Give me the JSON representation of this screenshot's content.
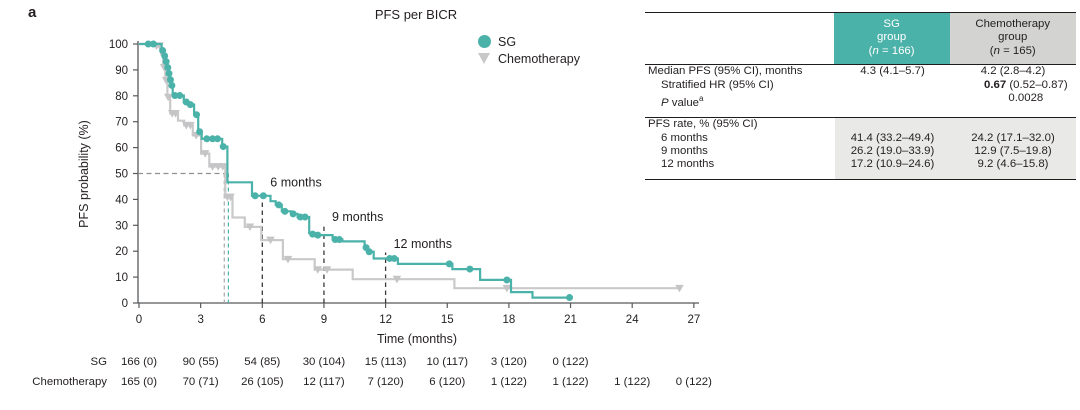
{
  "panel_label": "a",
  "chart_data": {
    "type": "line",
    "subtype": "kaplan-meier-step",
    "title": "PFS per BICR",
    "xlabel": "Time (months)",
    "ylabel": "PFS probability (%)",
    "xlim": [
      0,
      27
    ],
    "ylim": [
      0,
      100
    ],
    "xticks": [
      0,
      3,
      6,
      9,
      12,
      15,
      18,
      21,
      24,
      27
    ],
    "yticks": [
      0,
      10,
      20,
      30,
      40,
      50,
      60,
      70,
      80,
      90,
      100
    ],
    "grid": false,
    "legend_position": "top-right-inside",
    "legend": {
      "sg": "SG",
      "chemo": "Chemotherapy"
    },
    "colors": {
      "sg": "#4bb2a9",
      "chemo": "#c9c9c9",
      "chemo_marker": "#c5c5c7",
      "axis": "#58595b",
      "text": "#231f20",
      "month_dash": "#3a3a3a",
      "median_h_dash": "#909090",
      "median_chemo_dash": "#a8a8a8",
      "table_sg_bg": "#4bb2a9",
      "table_sg_text": "#ffffff",
      "table_chemo_bg": "#d3d3d2",
      "shade": "#e9e9e7"
    },
    "series": [
      {
        "name": "Chemotherapy",
        "marker": "triangle-down",
        "end_t": 26.3,
        "steps": [
          [
            0,
            100
          ],
          [
            0.8,
            99.3
          ],
          [
            1.08,
            96
          ],
          [
            1.18,
            91
          ],
          [
            1.28,
            86
          ],
          [
            1.38,
            79.5
          ],
          [
            1.52,
            73.2
          ],
          [
            1.9,
            70.4
          ],
          [
            2.2,
            68.6
          ],
          [
            2.62,
            64.7
          ],
          [
            3.02,
            57.7
          ],
          [
            3.42,
            52.7
          ],
          [
            4.2,
            40.9
          ],
          [
            4.55,
            33.0
          ],
          [
            5.15,
            29.4
          ],
          [
            5.95,
            24.3
          ],
          [
            7.0,
            16.9
          ],
          [
            8.55,
            12.9
          ],
          [
            10.4,
            9.2
          ],
          [
            15.35,
            5.7
          ]
        ],
        "censor_marks": [
          [
            0.85,
            99.3
          ],
          [
            1.0,
            99.3
          ],
          [
            1.22,
            91
          ],
          [
            1.32,
            86
          ],
          [
            1.42,
            79.5
          ],
          [
            1.62,
            73.2
          ],
          [
            1.78,
            73.2
          ],
          [
            2.3,
            68.6
          ],
          [
            2.5,
            68.6
          ],
          [
            2.78,
            64.7
          ],
          [
            3.22,
            57.7
          ],
          [
            3.58,
            52.7
          ],
          [
            3.85,
            52.7
          ],
          [
            4.08,
            52.7
          ],
          [
            4.3,
            40.9
          ],
          [
            4.45,
            40.9
          ],
          [
            5.4,
            29.4
          ],
          [
            6.4,
            24.3
          ],
          [
            7.25,
            16.9
          ],
          [
            8.7,
            12.9
          ],
          [
            9.15,
            12.9
          ],
          [
            12.55,
            9.2
          ],
          [
            17.9,
            5.7
          ],
          [
            26.3,
            5.7
          ]
        ]
      },
      {
        "name": "SG",
        "marker": "circle",
        "end_t": 21.0,
        "steps": [
          [
            0,
            100
          ],
          [
            1.1,
            97.5
          ],
          [
            1.22,
            95.4
          ],
          [
            1.3,
            93.2
          ],
          [
            1.36,
            90.9
          ],
          [
            1.44,
            88.6
          ],
          [
            1.5,
            86.2
          ],
          [
            1.56,
            84.0
          ],
          [
            1.64,
            80.1
          ],
          [
            2.18,
            77.6
          ],
          [
            2.42,
            76.6
          ],
          [
            2.68,
            72.7
          ],
          [
            2.88,
            66.1
          ],
          [
            3.05,
            63.4
          ],
          [
            4.05,
            60.4
          ],
          [
            4.3,
            46.6
          ],
          [
            5.5,
            41.4
          ],
          [
            6.4,
            39.3
          ],
          [
            6.65,
            37.9
          ],
          [
            6.95,
            35.4
          ],
          [
            7.4,
            34.4
          ],
          [
            7.72,
            33.2
          ],
          [
            8.28,
            27.0
          ],
          [
            8.55,
            26.2
          ],
          [
            9.42,
            24.5
          ],
          [
            9.9,
            23.8
          ],
          [
            10.98,
            21.4
          ],
          [
            11.15,
            19.8
          ],
          [
            11.42,
            17.2
          ],
          [
            12.6,
            15.1
          ],
          [
            15.25,
            13.1
          ],
          [
            16.6,
            8.9
          ],
          [
            18.1,
            4.2
          ],
          [
            19.15,
            2.1
          ]
        ],
        "censor_marks": [
          [
            0.45,
            100
          ],
          [
            0.7,
            100
          ],
          [
            1.15,
            97.5
          ],
          [
            1.25,
            95.4
          ],
          [
            1.32,
            93.2
          ],
          [
            1.4,
            90.9
          ],
          [
            1.46,
            88.6
          ],
          [
            1.53,
            86.2
          ],
          [
            1.6,
            84.0
          ],
          [
            1.75,
            80.1
          ],
          [
            1.98,
            80.1
          ],
          [
            2.3,
            77.6
          ],
          [
            2.5,
            76.6
          ],
          [
            2.8,
            72.7
          ],
          [
            2.95,
            66.1
          ],
          [
            3.3,
            63.4
          ],
          [
            3.58,
            63.4
          ],
          [
            3.82,
            63.4
          ],
          [
            4.1,
            60.4
          ],
          [
            5.65,
            41.4
          ],
          [
            6.05,
            41.4
          ],
          [
            6.8,
            37.9
          ],
          [
            7.1,
            35.4
          ],
          [
            7.5,
            34.4
          ],
          [
            7.85,
            33.2
          ],
          [
            8.08,
            33.2
          ],
          [
            8.45,
            26.6
          ],
          [
            8.7,
            26.2
          ],
          [
            9.55,
            24.5
          ],
          [
            9.75,
            24.5
          ],
          [
            11.05,
            21.4
          ],
          [
            11.2,
            19.8
          ],
          [
            12.2,
            17.2
          ],
          [
            12.42,
            17.2
          ],
          [
            15.1,
            15.1
          ],
          [
            16.1,
            13.1
          ],
          [
            17.9,
            8.9
          ],
          [
            20.95,
            2.1
          ]
        ]
      }
    ],
    "annotations": {
      "median_pfs": {
        "y_pct": 50,
        "sg_x": 4.35,
        "chemo_x": 4.15
      },
      "month_lines": [
        {
          "x": 6,
          "label": "6 months",
          "line_top_pct": 43.0,
          "label_y_pct": 46.5
        },
        {
          "x": 9,
          "label": "9 months",
          "line_top_pct": 29.5,
          "label_y_pct": 33.2
        },
        {
          "x": 12,
          "label": "12 months",
          "line_top_pct": 19.5,
          "label_y_pct": 22.8
        }
      ]
    }
  },
  "risk_table": {
    "rows": [
      {
        "label": "SG",
        "values": [
          "166 (0)",
          "90 (55)",
          "54 (85)",
          "30 (104)",
          "15 (113)",
          "10 (117)",
          "3 (120)",
          "0 (122)"
        ]
      },
      {
        "label": "Chemotherapy",
        "values": [
          "165 (0)",
          "70 (71)",
          "26 (105)",
          "12 (117)",
          "7 (120)",
          "6 (120)",
          "1 (122)",
          "1 (122)",
          "1 (122)",
          "0 (122)"
        ]
      }
    ]
  },
  "stats_table": {
    "header": {
      "sg": {
        "line1": "SG",
        "line2": "group",
        "n_label": "n",
        "n_value": "166"
      },
      "chemo": {
        "line1": "Chemotherapy",
        "line2": "group",
        "n_label": "n",
        "n_value": "165"
      }
    },
    "sections": [
      {
        "shaded": false,
        "rows": [
          {
            "indent": false,
            "label_parts": [
              {
                "t": "Median PFS (95% CI), months"
              }
            ],
            "cells": [
              "4.3 (4.1–5.7)",
              "4.2 (2.8–4.2)"
            ]
          },
          {
            "indent": true,
            "label_parts": [
              {
                "t": "Stratified HR (95% CI)"
              }
            ],
            "span_parts": [
              {
                "t": "0.67",
                "bold": true
              },
              {
                "t": " (0.52–0.87)"
              }
            ]
          },
          {
            "indent": true,
            "label_parts": [
              {
                "t": "P",
                "italic": true
              },
              {
                "t": " value"
              },
              {
                "t": "a",
                "sup": true
              }
            ],
            "span_parts": [
              {
                "t": "0.0028"
              }
            ]
          }
        ]
      },
      {
        "shaded": true,
        "rows": [
          {
            "indent": false,
            "label_parts": [
              {
                "t": "PFS rate, % (95% CI)"
              }
            ],
            "cells": [
              "",
              ""
            ]
          },
          {
            "indent": true,
            "label_parts": [
              {
                "t": "6 months"
              }
            ],
            "cells": [
              "41.4 (33.2–49.4)",
              "24.2 (17.1–32.0)"
            ]
          },
          {
            "indent": true,
            "label_parts": [
              {
                "t": "9 months"
              }
            ],
            "cells": [
              "26.2 (19.0–33.9)",
              "12.9 (7.5–19.8)"
            ]
          },
          {
            "indent": true,
            "label_parts": [
              {
                "t": "12 months"
              }
            ],
            "cells": [
              "17.2 (10.9–24.6)",
              "9.2 (4.6–15.8)"
            ]
          }
        ]
      }
    ]
  }
}
